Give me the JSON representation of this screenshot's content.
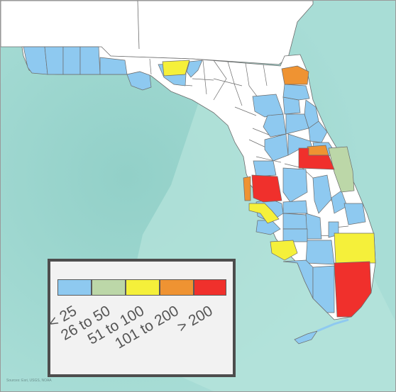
{
  "legend": {
    "bins": [
      {
        "label": "< 25",
        "color": "#8ec9f0"
      },
      {
        "label": "26 to 50",
        "color": "#bcd7a8"
      },
      {
        "label": "51 to 100",
        "color": "#f5f03a"
      },
      {
        "label": "101 to 200",
        "color": "#ef9332"
      },
      {
        "label": "> 200",
        "color": "#f0302c"
      }
    ]
  },
  "attribution": "Sources: Esri, USGS, NOAA",
  "colors": {
    "sea": "#a6dcd6",
    "sea_shallow": "#b8e5dd",
    "land_outside": "#ffffff",
    "no_data": "#ffffff",
    "county_border": "#6c6c6c"
  }
}
